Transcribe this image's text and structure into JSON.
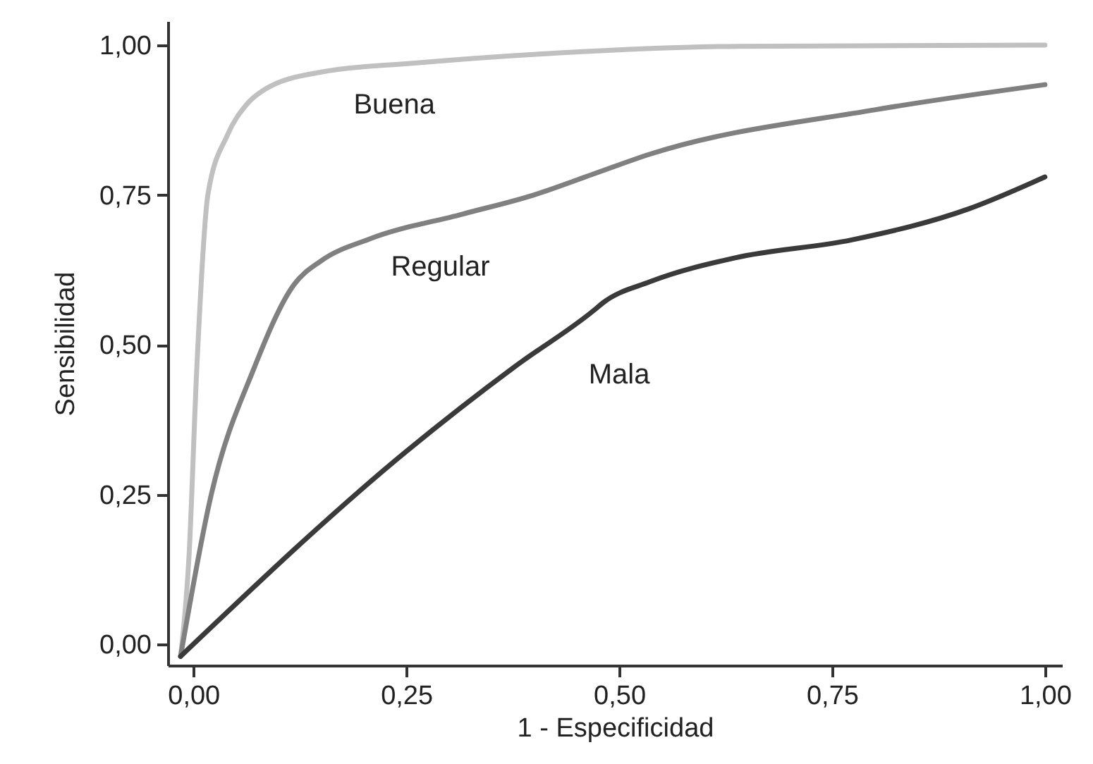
{
  "chart_data": {
    "type": "line",
    "xlabel": "1 - Especificidad",
    "ylabel": "Sensibilidad",
    "xlim": [
      -0.03,
      1.02
    ],
    "ylim": [
      -0.035,
      1.04
    ],
    "xticks": [
      {
        "value": 0,
        "label": "0,00"
      },
      {
        "value": 0.25,
        "label": "0,25"
      },
      {
        "value": 0.5,
        "label": "0,50"
      },
      {
        "value": 0.75,
        "label": "0,75"
      },
      {
        "value": 1,
        "label": "1,00"
      }
    ],
    "yticks": [
      {
        "value": 0,
        "label": "0,00"
      },
      {
        "value": 0.25,
        "label": "0,25"
      },
      {
        "value": 0.5,
        "label": "0,50"
      },
      {
        "value": 0.75,
        "label": "0,75"
      },
      {
        "value": 1,
        "label": "1,00"
      }
    ],
    "grid": false,
    "line_style": "solid",
    "series": [
      {
        "name": "Buena",
        "color": "#c0c0c0",
        "x": [
          -0.015,
          -0.005,
          0.004,
          0.017,
          0.04,
          0.062,
          0.085,
          0.15,
          0.26,
          0.43,
          0.64,
          1.0
        ],
        "values": [
          -0.02,
          0.15,
          0.46,
          0.75,
          0.85,
          0.9,
          0.927,
          0.955,
          0.97,
          0.987,
          0.998,
          1.0
        ]
      },
      {
        "name": "Regular",
        "color": "#808080",
        "x": [
          -0.015,
          0.021,
          0.071,
          0.118,
          0.15,
          0.206,
          0.316,
          0.4,
          0.47,
          0.536,
          0.8,
          1.0
        ],
        "values": [
          -0.02,
          0.25,
          0.46,
          0.6,
          0.64,
          0.676,
          0.718,
          0.75,
          0.785,
          0.818,
          0.892,
          0.934
        ]
      },
      {
        "name": "Mala",
        "color": "#3a3a3a",
        "x": [
          -0.015,
          0.25,
          0.377,
          0.47,
          0.481,
          0.536,
          0.636,
          0.773,
          0.911,
          1.0
        ],
        "values": [
          -0.02,
          0.322,
          0.463,
          0.557,
          0.57,
          0.605,
          0.645,
          0.675,
          0.727,
          0.78
        ]
      }
    ]
  }
}
